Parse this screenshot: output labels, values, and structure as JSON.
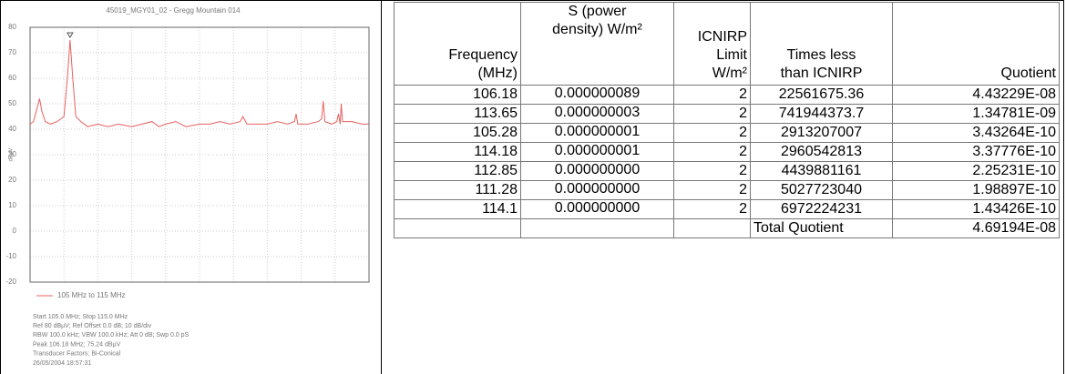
{
  "chart_data": {
    "type": "line",
    "title": "45019_MGY01_02 - Gregg Mountain 014",
    "ylabel": "dBµV",
    "x": [
      105.0,
      105.1,
      105.2,
      105.28,
      105.35,
      105.45,
      105.6,
      105.8,
      106.0,
      106.1,
      106.18,
      106.26,
      106.35,
      106.5,
      106.7,
      107.0,
      107.3,
      107.6,
      108.0,
      108.3,
      108.6,
      108.8,
      109.0,
      109.3,
      109.6,
      110.0,
      110.3,
      110.6,
      110.9,
      111.2,
      111.28,
      111.4,
      111.7,
      112.0,
      112.3,
      112.6,
      112.8,
      112.85,
      112.9,
      113.2,
      113.5,
      113.6,
      113.65,
      113.7,
      113.9,
      114.05,
      114.1,
      114.15,
      114.18,
      114.22,
      114.5,
      114.8,
      115.0
    ],
    "series": [
      {
        "name": "105 MHz to 115 MHz",
        "color": "#e8605f",
        "values": [
          42,
          43,
          48,
          52,
          47,
          43,
          42,
          43,
          45,
          60,
          75,
          60,
          45,
          43,
          41,
          42,
          41,
          42,
          41,
          42,
          43,
          41,
          42,
          43,
          41,
          42,
          42,
          43,
          42,
          43,
          45,
          42,
          42,
          42,
          43,
          42,
          43,
          46,
          42,
          42,
          43,
          44,
          51,
          43,
          42,
          43,
          46,
          42,
          50,
          43,
          43,
          42,
          42
        ]
      }
    ],
    "xlim": [
      105,
      115
    ],
    "ylim": [
      -20,
      80
    ],
    "yticks": [
      80,
      70,
      60,
      50,
      40,
      30,
      20,
      10,
      0,
      -10,
      -20
    ],
    "grid": true,
    "info": [
      "Start 105.0 MHz; Stop 115.0 MHz",
      "Ref 80 dBµV; Ref Offset 0.0 dB; 10 dB/div",
      "RBW 100.0 kHz; VBW 100.0 kHz; Att 0 dB; Swp 0.0 pS",
      "Peak 106.18 MHz; 75.24 dBµV",
      "Transducer Factors: Bi-Conical",
      "26/05/2004 18:57:31"
    ]
  },
  "table": {
    "header": [
      [
        "Frequency",
        "(MHz)"
      ],
      [
        "S (power",
        "density) W/m²"
      ],
      [
        "ICNIRP",
        "Limit",
        "W/m²"
      ],
      [
        "Times less",
        "than ICNIRP"
      ],
      [
        "Quotient"
      ]
    ],
    "rows": [
      [
        "106.18",
        "0.000000089",
        "2",
        "22561675.36",
        "4.43229E-08"
      ],
      [
        "113.65",
        "0.000000003",
        "2",
        "741944373.7",
        "1.34781E-09"
      ],
      [
        "105.28",
        "0.000000001",
        "2",
        "2913207007",
        "3.43264E-10"
      ],
      [
        "114.18",
        "0.000000001",
        "2",
        "2960542813",
        "3.37776E-10"
      ],
      [
        "112.85",
        "0.000000000",
        "2",
        "4439881161",
        "2.25231E-10"
      ],
      [
        "111.28",
        "0.000000000",
        "2",
        "5027723040",
        "1.98897E-10"
      ],
      [
        "114.1",
        "0.000000000",
        "2",
        "6972224231",
        "1.43426E-10"
      ]
    ],
    "total": {
      "label": "Total Quotient",
      "value": "4.69194E-08"
    }
  }
}
